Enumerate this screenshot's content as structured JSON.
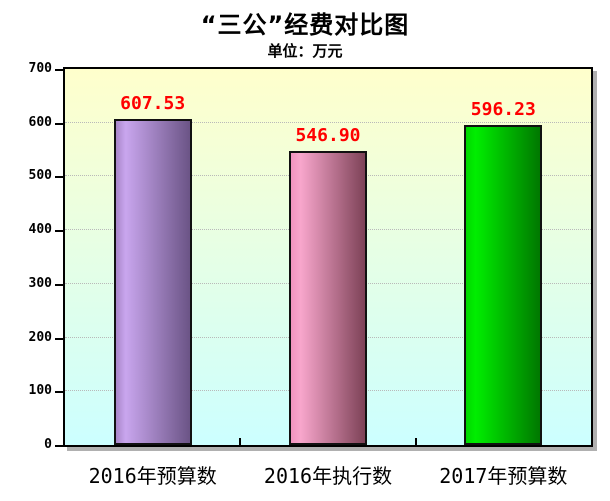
{
  "title": "“三公”经费对比图",
  "subtitle": "单位：万元",
  "chart_data": {
    "type": "bar",
    "title": "“三公”经费对比图",
    "subtitle_unit": "单位：万元",
    "categories": [
      "2016年预算数",
      "2016年执行数",
      "2017年预算数"
    ],
    "values": [
      607.53,
      546.9,
      596.23
    ],
    "value_labels": [
      "607.53",
      "546.90",
      "596.23"
    ],
    "ylim": [
      0,
      700
    ],
    "yticks": [
      0,
      100,
      200,
      300,
      400,
      500,
      600,
      700
    ],
    "grid": true,
    "legend": "none",
    "value_label_color": "#ff0000",
    "plot_bg_gradient_top": "#ffffcc",
    "plot_bg_gradient_bottom": "#ccffff",
    "bar_border_color": "#111111",
    "bar_gradients": [
      {
        "edge": "#a886c8",
        "light": "#c9a6ee",
        "dark": "#6b5486"
      },
      {
        "edge": "#f193bf",
        "light": "#f8a6cc",
        "dark": "#7d4257"
      },
      {
        "edge": "#00d800",
        "light": "#00ee00",
        "dark": "#007800"
      }
    ]
  }
}
